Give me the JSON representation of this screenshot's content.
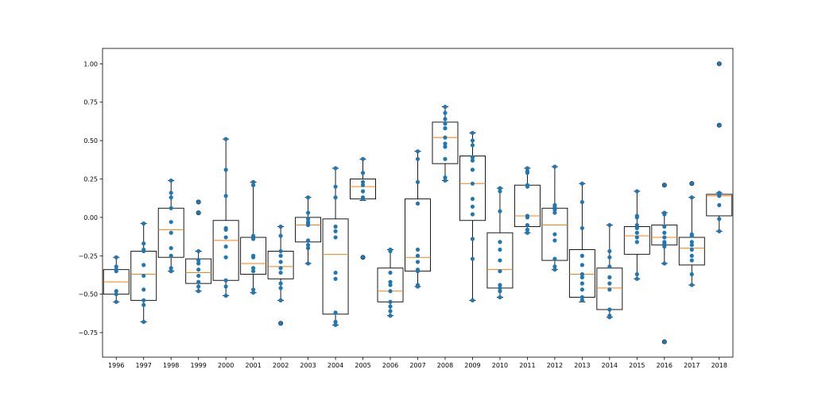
{
  "chart_data": {
    "type": "box",
    "categories": [
      "1996",
      "1997",
      "1998",
      "1999",
      "2000",
      "2001",
      "2002",
      "2003",
      "2004",
      "2005",
      "2006",
      "2007",
      "2008",
      "2009",
      "2010",
      "2011",
      "2012",
      "2013",
      "2014",
      "2015",
      "2016",
      "2017",
      "2018"
    ],
    "ylim": [
      -0.91,
      1.1
    ],
    "yticks": [
      1.0,
      0.75,
      0.5,
      0.25,
      0.0,
      -0.25,
      -0.5,
      -0.75
    ],
    "ytick_labels": [
      "1.00",
      "0.75",
      "0.50",
      "0.25",
      "0.00",
      "−0.25",
      "−0.50",
      "−0.75"
    ],
    "grid": false,
    "colors": {
      "box": "#000000",
      "median": "#ff7f0e",
      "points": "#1f77b4"
    },
    "boxes": [
      {
        "q1": -0.5,
        "median": -0.42,
        "q3": -0.34,
        "whislo": -0.55,
        "whishi": -0.26,
        "fliers": []
      },
      {
        "q1": -0.54,
        "median": -0.37,
        "q3": -0.22,
        "whislo": -0.68,
        "whishi": -0.04,
        "fliers": []
      },
      {
        "q1": -0.26,
        "median": -0.08,
        "q3": 0.06,
        "whislo": -0.35,
        "whishi": 0.24,
        "fliers": []
      },
      {
        "q1": -0.43,
        "median": -0.36,
        "q3": -0.27,
        "whislo": -0.48,
        "whishi": -0.22,
        "fliers": [
          0.1,
          0.03
        ]
      },
      {
        "q1": -0.41,
        "median": -0.15,
        "q3": -0.02,
        "whislo": -0.51,
        "whishi": 0.51,
        "fliers": []
      },
      {
        "q1": -0.37,
        "median": -0.3,
        "q3": -0.13,
        "whislo": -0.49,
        "whishi": 0.23,
        "fliers": []
      },
      {
        "q1": -0.4,
        "median": -0.32,
        "q3": -0.22,
        "whislo": -0.54,
        "whishi": -0.06,
        "fliers": [
          -0.69
        ]
      },
      {
        "q1": -0.16,
        "median": -0.05,
        "q3": 0.0,
        "whislo": -0.3,
        "whishi": 0.13,
        "fliers": []
      },
      {
        "q1": -0.63,
        "median": -0.24,
        "q3": -0.01,
        "whislo": -0.7,
        "whishi": 0.32,
        "fliers": []
      },
      {
        "q1": 0.12,
        "median": 0.2,
        "q3": 0.25,
        "whislo": 0.11,
        "whishi": 0.38,
        "fliers": [
          -0.26
        ]
      },
      {
        "q1": -0.55,
        "median": -0.48,
        "q3": -0.33,
        "whislo": -0.64,
        "whishi": -0.21,
        "fliers": []
      },
      {
        "q1": -0.35,
        "median": -0.26,
        "q3": 0.12,
        "whislo": -0.45,
        "whishi": 0.43,
        "fliers": []
      },
      {
        "q1": 0.35,
        "median": 0.52,
        "q3": 0.62,
        "whislo": 0.24,
        "whishi": 0.72,
        "fliers": []
      },
      {
        "q1": -0.02,
        "median": 0.22,
        "q3": 0.4,
        "whislo": -0.54,
        "whishi": 0.55,
        "fliers": []
      },
      {
        "q1": -0.46,
        "median": -0.34,
        "q3": -0.1,
        "whislo": -0.52,
        "whishi": 0.19,
        "fliers": []
      },
      {
        "q1": -0.06,
        "median": 0.01,
        "q3": 0.21,
        "whislo": -0.1,
        "whishi": 0.32,
        "fliers": []
      },
      {
        "q1": -0.28,
        "median": -0.05,
        "q3": 0.06,
        "whislo": -0.34,
        "whishi": 0.33,
        "fliers": []
      },
      {
        "q1": -0.52,
        "median": -0.37,
        "q3": -0.21,
        "whislo": -0.55,
        "whishi": 0.22,
        "fliers": []
      },
      {
        "q1": -0.6,
        "median": -0.46,
        "q3": -0.33,
        "whislo": -0.65,
        "whishi": -0.05,
        "fliers": []
      },
      {
        "q1": -0.24,
        "median": -0.12,
        "q3": -0.06,
        "whislo": -0.4,
        "whishi": 0.17,
        "fliers": []
      },
      {
        "q1": -0.18,
        "median": -0.13,
        "q3": -0.05,
        "whislo": -0.3,
        "whishi": 0.03,
        "fliers": [
          0.21,
          -0.81
        ]
      },
      {
        "q1": -0.31,
        "median": -0.2,
        "q3": -0.13,
        "whislo": -0.44,
        "whishi": 0.13,
        "fliers": [
          0.22
        ]
      },
      {
        "q1": 0.01,
        "median": 0.14,
        "q3": 0.15,
        "whislo": -0.09,
        "whishi": 0.16,
        "fliers": [
          1.0,
          0.6
        ]
      }
    ],
    "points": [
      [
        -0.26,
        -0.32,
        -0.34,
        -0.35,
        -0.48,
        -0.5,
        -0.55
      ],
      [
        -0.04,
        -0.17,
        -0.21,
        -0.22,
        -0.31,
        -0.38,
        -0.47,
        -0.54,
        -0.57,
        -0.68
      ],
      [
        0.24,
        0.16,
        0.13,
        0.06,
        -0.03,
        -0.1,
        -0.2,
        -0.25,
        -0.33,
        -0.35
      ],
      [
        0.1,
        0.03,
        -0.22,
        -0.28,
        -0.3,
        -0.34,
        -0.38,
        -0.42,
        -0.45,
        -0.48
      ],
      [
        0.51,
        0.31,
        0.14,
        -0.07,
        -0.08,
        -0.13,
        -0.19,
        -0.26,
        -0.41,
        -0.45,
        -0.51
      ],
      [
        0.23,
        0.21,
        -0.12,
        -0.14,
        -0.25,
        -0.26,
        -0.33,
        -0.35,
        -0.47,
        -0.49
      ],
      [
        -0.06,
        -0.12,
        -0.22,
        -0.25,
        -0.29,
        -0.33,
        -0.36,
        -0.43,
        -0.46,
        -0.54,
        -0.69
      ],
      [
        0.13,
        0.03,
        -0.01,
        -0.03,
        -0.04,
        -0.05,
        -0.15,
        -0.18,
        -0.2,
        -0.3
      ],
      [
        0.32,
        0.2,
        0.13,
        -0.06,
        -0.09,
        -0.13,
        -0.36,
        -0.4,
        -0.62,
        -0.68,
        -0.7
      ],
      [
        0.38,
        0.29,
        0.23,
        0.21,
        0.17,
        0.13,
        0.12,
        -0.26
      ],
      [
        -0.21,
        -0.22,
        -0.36,
        -0.42,
        -0.44,
        -0.48,
        -0.55,
        -0.58,
        -0.61,
        -0.64
      ],
      [
        0.43,
        0.38,
        0.23,
        0.09,
        -0.21,
        -0.25,
        -0.29,
        -0.34,
        -0.35,
        -0.44,
        -0.45
      ],
      [
        0.72,
        0.68,
        0.64,
        0.61,
        0.58,
        0.52,
        0.48,
        0.46,
        0.38,
        0.26,
        0.24
      ],
      [
        0.55,
        0.5,
        0.47,
        0.39,
        0.37,
        0.31,
        0.22,
        0.12,
        0.07,
        0.02,
        -0.14,
        -0.27,
        -0.54
      ],
      [
        0.19,
        0.17,
        0.04,
        -0.16,
        -0.21,
        -0.28,
        -0.35,
        -0.44,
        -0.46,
        -0.48,
        -0.52
      ],
      [
        0.32,
        0.3,
        0.29,
        0.21,
        0.2,
        0.01,
        0.0,
        -0.05,
        -0.08,
        -0.1
      ],
      [
        0.33,
        0.08,
        0.07,
        0.05,
        0.03,
        -0.11,
        -0.15,
        -0.27,
        -0.32,
        -0.34
      ],
      [
        0.22,
        0.1,
        -0.07,
        -0.25,
        -0.31,
        -0.37,
        -0.39,
        -0.43,
        -0.47,
        -0.52,
        -0.54
      ],
      [
        -0.05,
        -0.22,
        -0.26,
        -0.32,
        -0.39,
        -0.43,
        -0.47,
        -0.6,
        -0.64,
        -0.65
      ],
      [
        0.17,
        0.01,
        0.0,
        -0.05,
        -0.07,
        -0.1,
        -0.13,
        -0.16,
        -0.37,
        -0.4
      ],
      [
        0.21,
        0.03,
        0.02,
        -0.06,
        -0.1,
        -0.13,
        -0.16,
        -0.17,
        -0.19,
        -0.3,
        -0.81
      ],
      [
        0.22,
        0.13,
        -0.11,
        -0.12,
        -0.16,
        -0.18,
        -0.21,
        -0.25,
        -0.28,
        -0.37,
        -0.44
      ],
      [
        1.0,
        0.6,
        0.16,
        0.15,
        0.14,
        0.08,
        -0.01,
        -0.09
      ]
    ]
  }
}
